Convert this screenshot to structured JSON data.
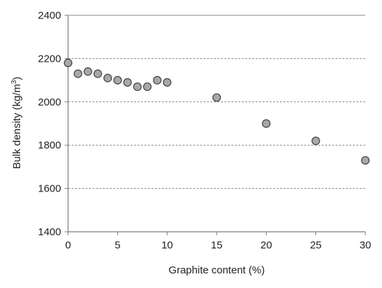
{
  "chart_data": {
    "type": "scatter",
    "xlabel": "Graphite content (%)",
    "ylabel_text": "Bulk density  (kg/m",
    "ylabel_superscript": "3",
    "ylabel_close": ")",
    "xlim": [
      0,
      30
    ],
    "ylim": [
      1400,
      2400
    ],
    "x_ticks": [
      0,
      5,
      10,
      15,
      20,
      25,
      30
    ],
    "y_ticks": [
      1400,
      1600,
      1800,
      2000,
      2200,
      2400
    ],
    "grid": "horizontal-dashed",
    "marker_fill": "#a8a8a8",
    "marker_stroke": "#404040",
    "points": [
      {
        "x": 0,
        "y": 2180
      },
      {
        "x": 1,
        "y": 2130
      },
      {
        "x": 2,
        "y": 2140
      },
      {
        "x": 3,
        "y": 2130
      },
      {
        "x": 4,
        "y": 2110
      },
      {
        "x": 5,
        "y": 2100
      },
      {
        "x": 6,
        "y": 2090
      },
      {
        "x": 7,
        "y": 2070
      },
      {
        "x": 8,
        "y": 2070
      },
      {
        "x": 9,
        "y": 2100
      },
      {
        "x": 10,
        "y": 2090
      },
      {
        "x": 15,
        "y": 2020
      },
      {
        "x": 20,
        "y": 1900
      },
      {
        "x": 25,
        "y": 1820
      },
      {
        "x": 30,
        "y": 1730
      }
    ]
  }
}
